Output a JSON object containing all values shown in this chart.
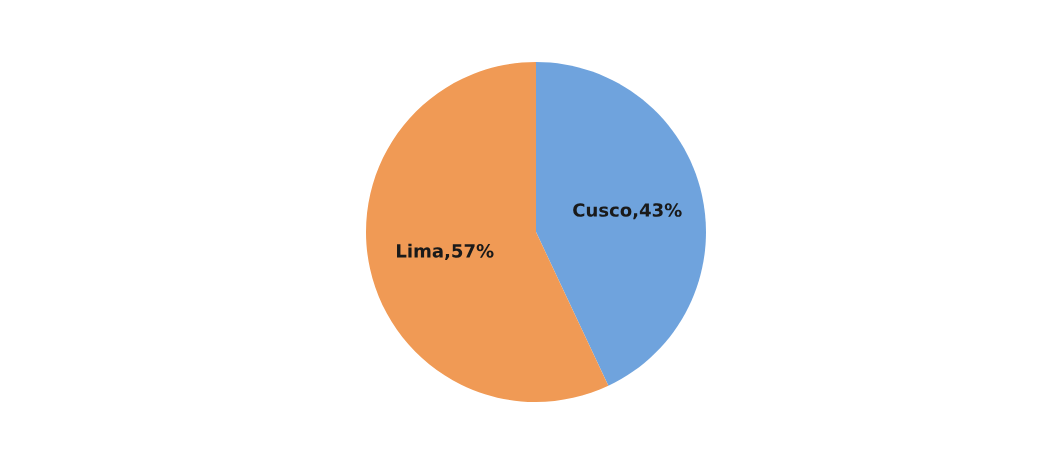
{
  "chart_data": {
    "type": "pie",
    "categories": [
      "Cusco",
      "Lima"
    ],
    "values": [
      43,
      57
    ],
    "colors": [
      "#6fa3dd",
      "#f09a55"
    ],
    "value_labels": [
      "43%",
      "57%"
    ]
  }
}
